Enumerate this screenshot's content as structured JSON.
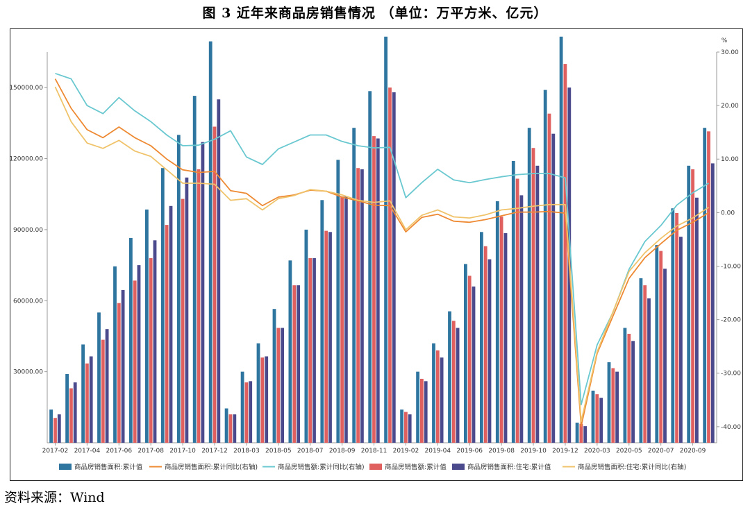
{
  "title": "图 3   近年来商品房销售情况 （单位：万平方米、亿元）",
  "source": "资料来源：Wind",
  "chart_data": {
    "type": "bar",
    "left_axis": {
      "range": [
        0,
        165000
      ],
      "ticks": [
        "30000.00",
        "60000.00",
        "90000.00",
        "120000.00",
        "150000.00"
      ]
    },
    "right_axis": {
      "unit": "%",
      "range": [
        -43,
        30
      ],
      "ticks": [
        "30.00",
        "20.00",
        "10.00",
        "0.00",
        "-10.00",
        "-20.00",
        "-30.00",
        "-40.00"
      ]
    },
    "grid": false,
    "legend_position": "bottom",
    "categories": [
      "2017-02",
      "2017-03",
      "2017-04",
      "2017-05",
      "2017-06",
      "2017-07",
      "2017-08",
      "2017-09",
      "2017-10",
      "2017-11",
      "2017-12",
      "2018-02",
      "2018-03",
      "2018-04",
      "2018-05",
      "2018-06",
      "2018-07",
      "2018-08",
      "2018-09",
      "2018-10",
      "2018-11",
      "2018-12",
      "2019-02",
      "2019-03",
      "2019-04",
      "2019-05",
      "2019-06",
      "2019-07",
      "2019-08",
      "2019-09",
      "2019-10",
      "2019-11",
      "2019-12",
      "2020-02",
      "2020-03",
      "2020-04",
      "2020-05",
      "2020-06",
      "2020-07",
      "2020-08",
      "2020-09",
      "2020-10"
    ],
    "x_tick_labels": [
      "2017-02",
      "2017-04",
      "2017-06",
      "2017-08",
      "2017-10",
      "2017-12",
      "2018-03",
      "2018-05",
      "2018-07",
      "2018-09",
      "2018-11",
      "2019-02",
      "2019-04",
      "2019-06",
      "2019-08",
      "2019-10",
      "2019-12",
      "2020-03",
      "2020-05",
      "2020-07",
      "2020-09"
    ],
    "bar_series": [
      {
        "name": "商品房销售面积:累计值",
        "color": "#2e75a0",
        "values": [
          14000,
          29000,
          41500,
          55000,
          74500,
          86500,
          98500,
          116000,
          130000,
          146500,
          169500,
          14500,
          30000,
          42000,
          56500,
          77000,
          90000,
          102500,
          119500,
          133000,
          148500,
          171500,
          14000,
          30000,
          42000,
          55500,
          75500,
          89000,
          102000,
          119000,
          133000,
          149000,
          171500,
          8500,
          22000,
          34000,
          48500,
          69500,
          83500,
          99000,
          117000,
          133000
        ]
      },
      {
        "name": "商品房销售额:累计值",
        "color": "#e06060",
        "values": [
          10500,
          23000,
          33500,
          43500,
          59000,
          68500,
          78000,
          92000,
          103000,
          115500,
          133500,
          12000,
          25500,
          36000,
          48500,
          66500,
          78000,
          89500,
          104000,
          116000,
          129500,
          150000,
          13000,
          27000,
          39000,
          51500,
          70500,
          83000,
          95500,
          111500,
          124500,
          139000,
          160000,
          8000,
          20500,
          31500,
          46000,
          66500,
          81000,
          97000,
          115500,
          131500
        ]
      },
      {
        "name": "商品房销售面积:住宅:累计值",
        "color": "#4a4a8c",
        "values": [
          12000,
          25500,
          36500,
          48000,
          64500,
          75000,
          85500,
          100000,
          112000,
          127000,
          145000,
          12000,
          26000,
          36500,
          48500,
          66500,
          78000,
          89000,
          104000,
          115500,
          128500,
          148000,
          12000,
          26000,
          36000,
          48500,
          66000,
          77500,
          88500,
          104500,
          117000,
          130500,
          150000,
          7000,
          19000,
          30000,
          43000,
          61000,
          73500,
          87000,
          103500,
          118000
        ]
      }
    ],
    "line_series": [
      {
        "name": "商品房销售面积:累计同比(右轴)",
        "color": "#ee8a33",
        "values": [
          25.0,
          19.5,
          15.5,
          14.0,
          16.0,
          14.0,
          12.5,
          10.0,
          8.0,
          7.5,
          7.7,
          4.1,
          3.6,
          1.3,
          2.9,
          3.3,
          4.2,
          4.0,
          2.9,
          2.2,
          1.4,
          1.3,
          -3.6,
          -0.9,
          -0.3,
          -1.6,
          -1.8,
          -1.3,
          -0.6,
          0.1,
          0.1,
          0.2,
          -0.1,
          -39.9,
          -26.3,
          -19.3,
          -12.3,
          -8.4,
          -5.8,
          -3.3,
          -1.8,
          0.0
        ]
      },
      {
        "name": "商品房销售额:累计同比(右轴)",
        "color": "#6ac8d0",
        "values": [
          26.0,
          25.0,
          20.0,
          18.5,
          21.5,
          19.0,
          17.0,
          14.5,
          12.5,
          12.6,
          13.7,
          15.3,
          10.4,
          9.0,
          11.9,
          13.2,
          14.5,
          14.5,
          13.3,
          12.5,
          12.1,
          12.2,
          2.8,
          5.6,
          8.1,
          6.1,
          5.6,
          6.2,
          6.7,
          7.1,
          7.3,
          7.3,
          6.5,
          -35.9,
          -24.7,
          -18.6,
          -10.6,
          -5.4,
          -2.4,
          1.4,
          3.7,
          5.5
        ]
      },
      {
        "name": "商品房销售面积:住宅:累计同比(右轴)",
        "color": "#f0c36a",
        "values": [
          23.5,
          17.0,
          13.0,
          12.0,
          13.5,
          11.5,
          10.5,
          8.0,
          5.5,
          5.5,
          5.3,
          2.3,
          2.6,
          0.5,
          2.6,
          3.2,
          4.3,
          4.0,
          3.3,
          2.3,
          1.9,
          2.2,
          -3.2,
          -0.5,
          0.5,
          -0.8,
          -1.0,
          -0.4,
          0.5,
          0.8,
          1.2,
          1.5,
          1.5,
          -39.0,
          -26.0,
          -18.5,
          -11.0,
          -7.5,
          -4.8,
          -2.5,
          -1.0,
          1.0
        ]
      }
    ],
    "legend": [
      "商品房销售面积:累计值",
      "商品房销售面积:累计同比(右轴)",
      "商品房销售额:累计同比(右轴)",
      "商品房销售额:累计值",
      "商品房销售面积:住宅:累计值",
      "商品房销售面积:住宅:累计同比(右轴)"
    ]
  }
}
